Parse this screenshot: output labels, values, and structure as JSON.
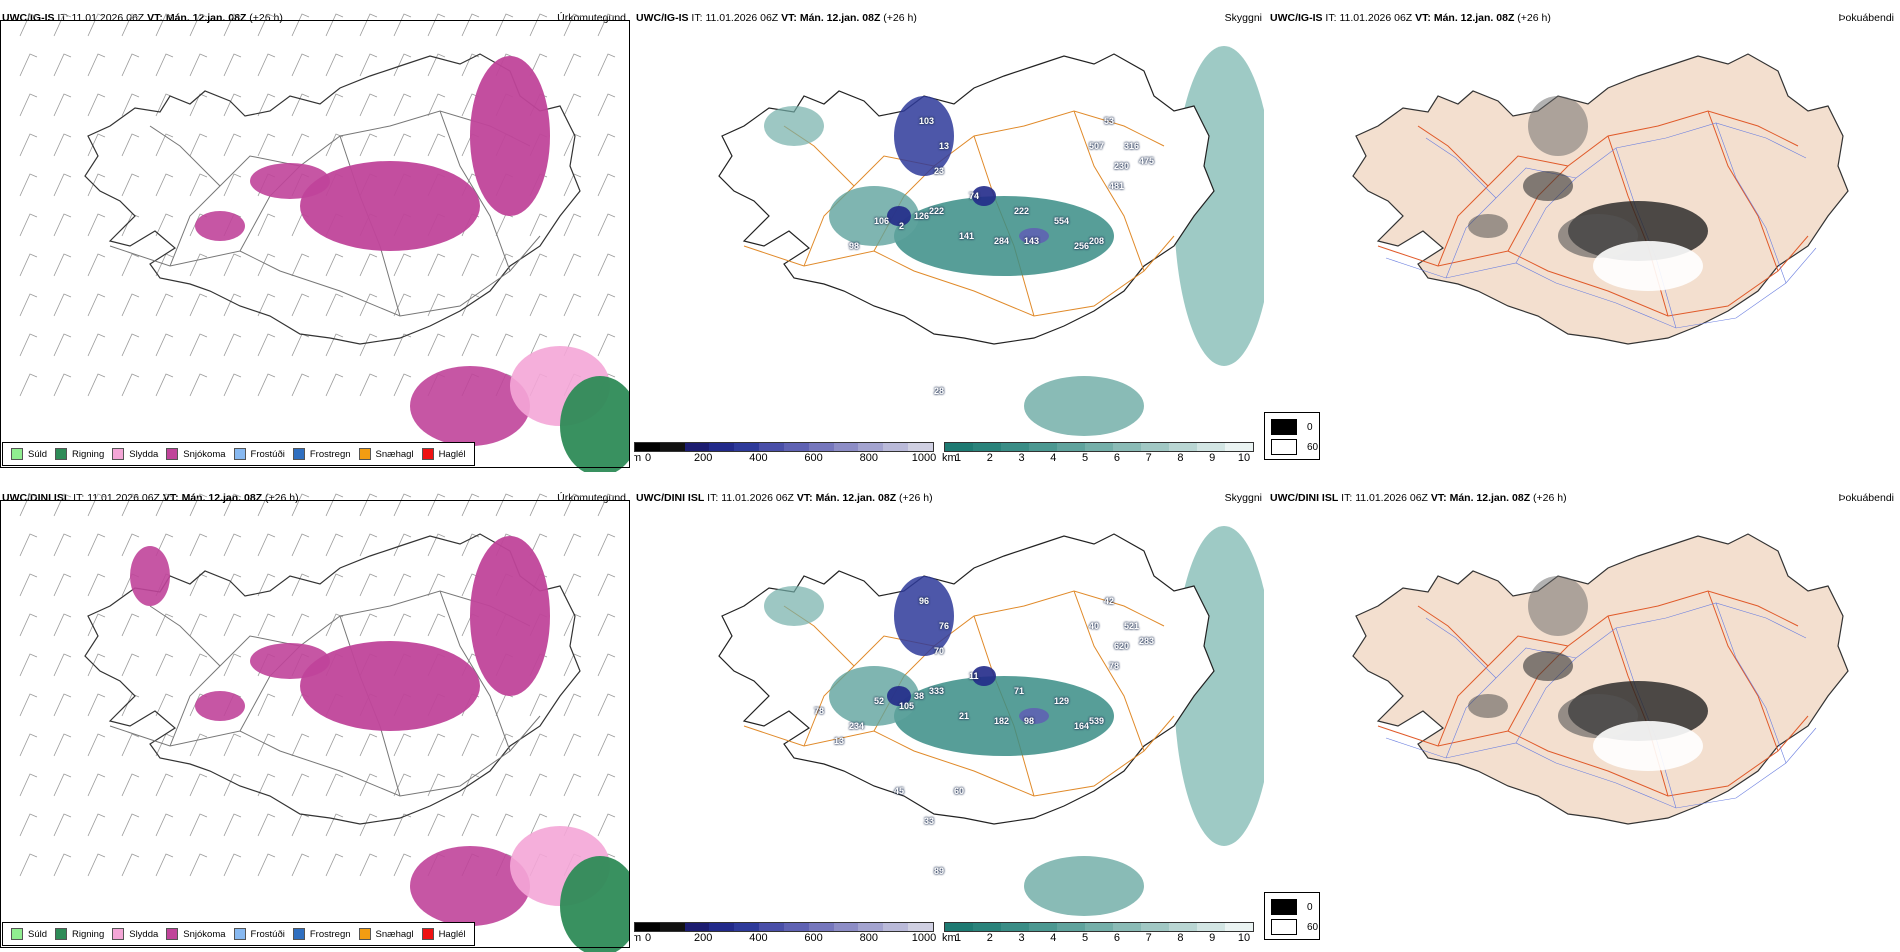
{
  "rows": [
    {
      "model": "UWC/IG-IS",
      "it_label": "IT:",
      "it_value": "11.01.2026 06Z",
      "vt_label": "VT:",
      "vt_value": "Mán. 12.jan. 08Z",
      "lead": "(+26 h)",
      "panel_titles": [
        "Úrkomutegund",
        "Skyggni",
        "Þokuábendi"
      ],
      "visibility_labels": [
        "53",
        "507",
        "316",
        "230",
        "475",
        "481",
        "103",
        "13",
        "23",
        "74",
        "222",
        "222",
        "554",
        "141",
        "284",
        "143",
        "256",
        "208",
        "106",
        "126",
        "98",
        "2",
        "28"
      ]
    },
    {
      "model": "UWC/DINI ISL",
      "it_label": "IT:",
      "it_value": "11.01.2026 06Z",
      "vt_label": "VT:",
      "vt_value": "Mán. 12.jan. 08Z",
      "lead": "(+26 h)",
      "panel_titles": [
        "Úrkomutegund",
        "Skyggni",
        "Þokuábendi"
      ],
      "visibility_labels": [
        "42",
        "40",
        "521",
        "620",
        "283",
        "78",
        "96",
        "76",
        "70",
        "11",
        "333",
        "71",
        "129",
        "21",
        "182",
        "98",
        "164",
        "539",
        "52",
        "38",
        "234",
        "105",
        "89",
        "60",
        "78",
        "13",
        "45",
        "33"
      ]
    }
  ],
  "precip_legend": [
    {
      "label": "Súld",
      "color": "#90ee90"
    },
    {
      "label": "Rigning",
      "color": "#2e8b57"
    },
    {
      "label": "Slydda",
      "color": "#f4a6d7"
    },
    {
      "label": "Snjókoma",
      "color": "#c0449a"
    },
    {
      "label": "Frostúði",
      "color": "#87b8f0"
    },
    {
      "label": "Frostregn",
      "color": "#2f6fc0"
    },
    {
      "label": "Snæhagl",
      "color": "#f39c12"
    },
    {
      "label": "Haglél",
      "color": "#e11"
    }
  ],
  "elev_scale": {
    "unit": "m",
    "ticks": [
      "0",
      "200",
      "400",
      "600",
      "800",
      "1000"
    ],
    "colors": [
      "#000",
      "#111",
      "#1c1c70",
      "#222a8a",
      "#2e3a9a",
      "#4a4fa8",
      "#5f62b3",
      "#7677bd",
      "#8d8dc6",
      "#a4a4d0",
      "#babad9",
      "#d0d0e2"
    ]
  },
  "vis_scale": {
    "unit": "km",
    "ticks": [
      "1",
      "2",
      "3",
      "4",
      "5",
      "6",
      "7",
      "8",
      "9",
      "10"
    ],
    "colors": [
      "#1e7a72",
      "#2a837b",
      "#3a8d86",
      "#4b9891",
      "#5fa39d",
      "#74afa9",
      "#8abbb6",
      "#a1c8c4",
      "#b9d6d3",
      "#d2e5e3",
      "#eaf3f2"
    ]
  },
  "fog_scale": {
    "ticks": [
      "0",
      "60"
    ],
    "colors": [
      "#000",
      "#fff"
    ]
  }
}
